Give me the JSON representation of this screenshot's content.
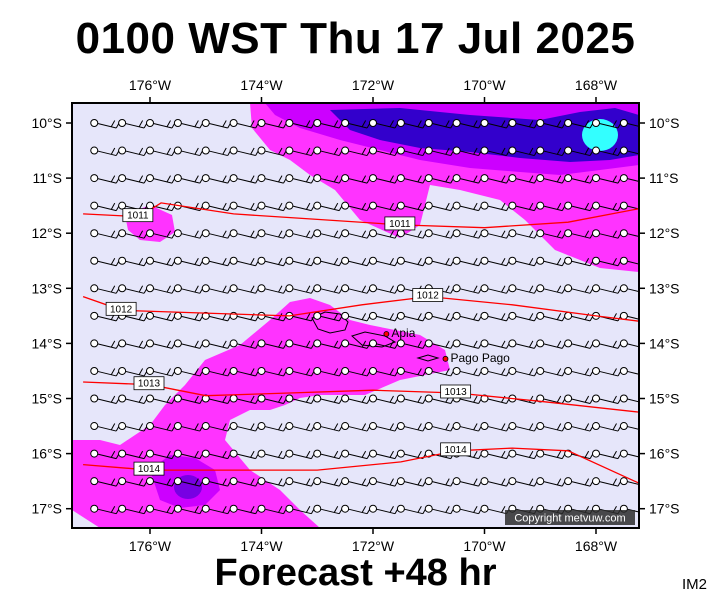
{
  "title": "0100 WST Thu 17 Jul 2025",
  "subtitle": "Forecast +48 hr",
  "corner_label": "IM2",
  "copyright": "Copyright metvuw.com",
  "lon_ticks": [
    {
      "lon": -176,
      "label": "176°W"
    },
    {
      "lon": -174,
      "label": "174°W"
    },
    {
      "lon": -172,
      "label": "172°W"
    },
    {
      "lon": -170,
      "label": "170°W"
    },
    {
      "lon": -168,
      "label": "168°W"
    }
  ],
  "lat_ticks": [
    {
      "lat": -10,
      "label": "10°S"
    },
    {
      "lat": -11,
      "label": "11°S"
    },
    {
      "lat": -12,
      "label": "12°S"
    },
    {
      "lat": -13,
      "label": "13°S"
    },
    {
      "lat": -14,
      "label": "14°S"
    },
    {
      "lat": -15,
      "label": "15°S"
    },
    {
      "lat": -16,
      "label": "16°S"
    },
    {
      "lat": -17,
      "label": "17°S"
    }
  ],
  "isobars": [
    {
      "label": "1011",
      "points": [
        [
          -177.2,
          -11.65
        ],
        [
          -176.2,
          -11.7
        ],
        [
          -175.8,
          -11.45
        ],
        [
          -174.5,
          -11.65
        ],
        [
          -173,
          -11.75
        ],
        [
          -171.5,
          -11.85
        ],
        [
          -170,
          -11.9
        ],
        [
          -168.5,
          -11.8
        ],
        [
          -167.2,
          -11.55
        ]
      ]
    },
    {
      "label": "1012",
      "points": [
        [
          -177.2,
          -13.15
        ],
        [
          -176.5,
          -13.4
        ],
        [
          -175,
          -13.45
        ],
        [
          -173.5,
          -13.5
        ],
        [
          -172.2,
          -13.3
        ],
        [
          -171,
          -13.15
        ],
        [
          -169.5,
          -13.3
        ],
        [
          -168,
          -13.5
        ],
        [
          -167.2,
          -13.6
        ]
      ]
    },
    {
      "label": "1013",
      "points": [
        [
          -177.2,
          -14.7
        ],
        [
          -176,
          -14.75
        ],
        [
          -175,
          -14.95
        ],
        [
          -173.5,
          -14.9
        ],
        [
          -172,
          -14.85
        ],
        [
          -170.5,
          -14.9
        ],
        [
          -169,
          -15.05
        ],
        [
          -167.2,
          -15.25
        ]
      ]
    },
    {
      "label": "1014",
      "points": [
        [
          -177.2,
          -16.2
        ],
        [
          -176,
          -16.3
        ],
        [
          -174.5,
          -16.3
        ],
        [
          -173,
          -16.3
        ],
        [
          -171.5,
          -16.15
        ],
        [
          -170.5,
          -15.95
        ],
        [
          -169.5,
          -15.9
        ],
        [
          -168.5,
          -15.95
        ],
        [
          -167.2,
          -16.55
        ]
      ]
    }
  ],
  "places": [
    {
      "name": "Apia",
      "lon": -171.76,
      "lat": -13.83
    },
    {
      "name": "Pago Pago",
      "lon": -170.7,
      "lat": -14.28
    }
  ],
  "rain_colors": {
    "light": "#ff33ff",
    "mid": "#cc00ff",
    "heavy": "#3300cc",
    "extreme": "#33ffff"
  },
  "background_color": "#e6e6fa"
}
